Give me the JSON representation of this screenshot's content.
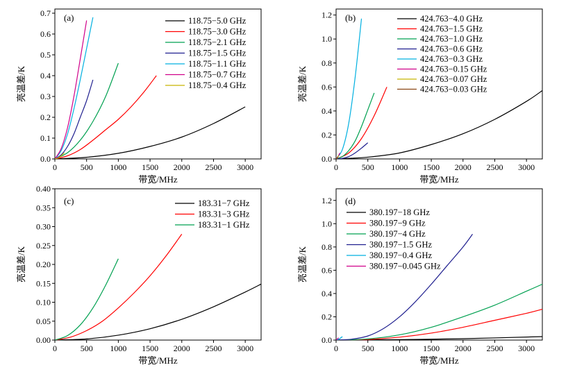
{
  "chart_data": [
    {
      "type": "line",
      "panel_label": "(a)",
      "xlabel": "带宽/MHz",
      "ylabel": "亮温差/K",
      "xlim": [
        0,
        3250
      ],
      "ylim": [
        0,
        0.72
      ],
      "xticks": [
        "0",
        "500",
        "1000",
        "1500",
        "2000",
        "2500",
        "3000"
      ],
      "yticks": [
        "0.0",
        "0.1",
        "0.2",
        "0.3",
        "0.4",
        "0.5",
        "0.6",
        "0.7"
      ],
      "xtick_values": [
        0,
        500,
        1000,
        1500,
        2000,
        2500,
        3000
      ],
      "ytick_values": [
        0,
        0.1,
        0.2,
        0.3,
        0.4,
        0.5,
        0.6,
        0.7
      ],
      "legend_position": "top-right",
      "series": [
        {
          "name": "118.75−5.0 GHz",
          "color": "#000000",
          "x": [
            0,
            500,
            1000,
            1500,
            2000,
            2500,
            3000
          ],
          "y": [
            0,
            0.008,
            0.027,
            0.06,
            0.105,
            0.17,
            0.25
          ]
        },
        {
          "name": "118.75−3.0 GHz",
          "color": "#ff0000",
          "x": [
            0,
            200,
            400,
            600,
            800,
            1000,
            1200,
            1400,
            1600
          ],
          "y": [
            0,
            0.015,
            0.045,
            0.09,
            0.14,
            0.19,
            0.25,
            0.32,
            0.4
          ]
        },
        {
          "name": "118.75−2.1 GHz",
          "color": "#00a050",
          "x": [
            0,
            200,
            400,
            600,
            800,
            1000
          ],
          "y": [
            0,
            0.03,
            0.09,
            0.18,
            0.3,
            0.46
          ]
        },
        {
          "name": "118.75−1.5 GHz",
          "color": "#1f1f8f",
          "x": [
            0,
            100,
            200,
            300,
            400,
            500,
            600
          ],
          "y": [
            0,
            0.02,
            0.06,
            0.12,
            0.2,
            0.28,
            0.38
          ]
        },
        {
          "name": "118.75−1.1 GHz",
          "color": "#00b0e0",
          "x": [
            0,
            100,
            200,
            300,
            400,
            500,
            600
          ],
          "y": [
            0,
            0.04,
            0.12,
            0.24,
            0.38,
            0.53,
            0.68
          ]
        },
        {
          "name": "118.75−0.7 GHz",
          "color": "#d0008a",
          "x": [
            0,
            100,
            200,
            300,
            400,
            500
          ],
          "y": [
            0,
            0.05,
            0.15,
            0.3,
            0.48,
            0.665
          ]
        },
        {
          "name": "118.75−0.4 GHz",
          "color": "#c8b400",
          "x": [
            0,
            50,
            100,
            150
          ],
          "y": [
            0,
            0.005,
            0.015,
            0.03
          ]
        }
      ]
    },
    {
      "type": "line",
      "panel_label": "(b)",
      "xlabel": "带宽/MHz",
      "ylabel": "亮温差/K",
      "xlim": [
        0,
        3250
      ],
      "ylim": [
        0,
        1.25
      ],
      "xticks": [
        "0",
        "500",
        "1000",
        "1500",
        "2000",
        "2500",
        "3000"
      ],
      "yticks": [
        "0.0",
        "0.2",
        "0.4",
        "0.6",
        "0.8",
        "1.0",
        "1.2"
      ],
      "xtick_values": [
        0,
        500,
        1000,
        1500,
        2000,
        2500,
        3000
      ],
      "ytick_values": [
        0,
        0.2,
        0.4,
        0.6,
        0.8,
        1.0,
        1.2
      ],
      "legend_position": "top-right",
      "series": [
        {
          "name": "424.763−4.0 GHz",
          "color": "#000000",
          "x": [
            0,
            500,
            1000,
            1500,
            2000,
            2500,
            3000,
            3250
          ],
          "y": [
            0,
            0.015,
            0.05,
            0.12,
            0.21,
            0.33,
            0.48,
            0.57
          ]
        },
        {
          "name": "424.763−1.5 GHz",
          "color": "#ff0000",
          "x": [
            0,
            200,
            400,
            600,
            800
          ],
          "y": [
            0,
            0.05,
            0.17,
            0.36,
            0.6
          ]
        },
        {
          "name": "424.763−1.0 GHz",
          "color": "#00a050",
          "x": [
            0,
            100,
            200,
            300,
            400,
            500,
            600
          ],
          "y": [
            0,
            0.02,
            0.07,
            0.15,
            0.27,
            0.41,
            0.55
          ]
        },
        {
          "name": "424.763−0.6 GHz",
          "color": "#1f1f8f",
          "x": [
            0,
            100,
            200,
            300,
            400,
            500
          ],
          "y": [
            0,
            0.005,
            0.02,
            0.05,
            0.09,
            0.135
          ]
        },
        {
          "name": "424.763−0.3 GHz",
          "color": "#00b0e0",
          "x": [
            0,
            100,
            200,
            300,
            400
          ],
          "y": [
            0,
            0.08,
            0.3,
            0.68,
            1.17
          ]
        },
        {
          "name": "424.763−0.15 GHz",
          "color": "#d0008a",
          "x": [
            0,
            30,
            60
          ],
          "y": [
            0,
            0.02,
            0.05
          ]
        },
        {
          "name": "424.763−0.07 GHz",
          "color": "#c8b400",
          "x": [
            0,
            20,
            40
          ],
          "y": [
            0,
            0.01,
            0.03
          ]
        },
        {
          "name": "424.763−0.03 GHz",
          "color": "#8b4513",
          "x": [
            0,
            15,
            30
          ],
          "y": [
            0,
            0.005,
            0.02
          ]
        }
      ]
    },
    {
      "type": "line",
      "panel_label": "(c)",
      "xlabel": "带宽/MHz",
      "ylabel": "亮温差/K",
      "xlim": [
        0,
        3250
      ],
      "ylim": [
        0,
        0.4
      ],
      "xticks": [
        "0",
        "500",
        "1000",
        "1500",
        "2000",
        "2500",
        "3000"
      ],
      "yticks": [
        "0.00",
        "0.05",
        "0.10",
        "0.15",
        "0.20",
        "0.25",
        "0.30",
        "0.35",
        "0.40"
      ],
      "xtick_values": [
        0,
        500,
        1000,
        1500,
        2000,
        2500,
        3000
      ],
      "ytick_values": [
        0,
        0.05,
        0.1,
        0.15,
        0.2,
        0.25,
        0.3,
        0.35,
        0.4
      ],
      "legend_position": "top-right",
      "series": [
        {
          "name": "183.31−7 GHz",
          "color": "#000000",
          "x": [
            0,
            500,
            1000,
            1500,
            2000,
            2500,
            3000,
            3250
          ],
          "y": [
            0,
            0.003,
            0.013,
            0.03,
            0.055,
            0.088,
            0.127,
            0.148
          ]
        },
        {
          "name": "183.31−3 GHz",
          "color": "#ff0000",
          "x": [
            0,
            250,
            500,
            750,
            1000,
            1250,
            1500,
            1750,
            2000
          ],
          "y": [
            0,
            0.008,
            0.025,
            0.05,
            0.085,
            0.125,
            0.17,
            0.222,
            0.28
          ]
        },
        {
          "name": "183.31−1 GHz",
          "color": "#00a050",
          "x": [
            0,
            200,
            400,
            600,
            800,
            1000
          ],
          "y": [
            0,
            0.012,
            0.04,
            0.085,
            0.145,
            0.215
          ]
        }
      ]
    },
    {
      "type": "line",
      "panel_label": "(d)",
      "xlabel": "带宽/MHz",
      "ylabel": "亮温差/K",
      "xlim": [
        0,
        3250
      ],
      "ylim": [
        0,
        1.3
      ],
      "xticks": [
        "0",
        "500",
        "1000",
        "1500",
        "2000",
        "2500",
        "3000"
      ],
      "yticks": [
        "0.0",
        "0.2",
        "0.4",
        "0.6",
        "0.8",
        "1.0",
        "1.2"
      ],
      "xtick_values": [
        0,
        500,
        1000,
        1500,
        2000,
        2500,
        3000
      ],
      "ytick_values": [
        0,
        0.2,
        0.4,
        0.6,
        0.8,
        1.0,
        1.2
      ],
      "legend_position": "top-left",
      "series": [
        {
          "name": "380.197−18 GHz",
          "color": "#000000",
          "x": [
            0,
            1000,
            2000,
            3250
          ],
          "y": [
            0,
            0.004,
            0.012,
            0.03
          ]
        },
        {
          "name": "380.197−9 GHz",
          "color": "#ff0000",
          "x": [
            0,
            500,
            1000,
            1500,
            2000,
            2500,
            3000,
            3250
          ],
          "y": [
            0,
            0.005,
            0.025,
            0.06,
            0.11,
            0.17,
            0.23,
            0.265
          ]
        },
        {
          "name": "380.197−4 GHz",
          "color": "#00a050",
          "x": [
            0,
            500,
            1000,
            1500,
            2000,
            2500,
            3000,
            3250
          ],
          "y": [
            0,
            0.01,
            0.045,
            0.11,
            0.2,
            0.3,
            0.42,
            0.48
          ]
        },
        {
          "name": "380.197−1.5 GHz",
          "color": "#1f1f8f",
          "x": [
            0,
            250,
            500,
            750,
            1000,
            1250,
            1500,
            1750,
            2000,
            2150
          ],
          "y": [
            0,
            0.008,
            0.035,
            0.1,
            0.2,
            0.33,
            0.48,
            0.64,
            0.8,
            0.91
          ]
        },
        {
          "name": "380.197−0.4 GHz",
          "color": "#00b0e0",
          "x": [
            0,
            50,
            100
          ],
          "y": [
            0,
            0.01,
            0.03
          ]
        },
        {
          "name": "380.197−0.045 GHz",
          "color": "#d0008a",
          "x": [
            0,
            20,
            40
          ],
          "y": [
            0,
            0.01,
            0.02
          ]
        }
      ]
    }
  ]
}
